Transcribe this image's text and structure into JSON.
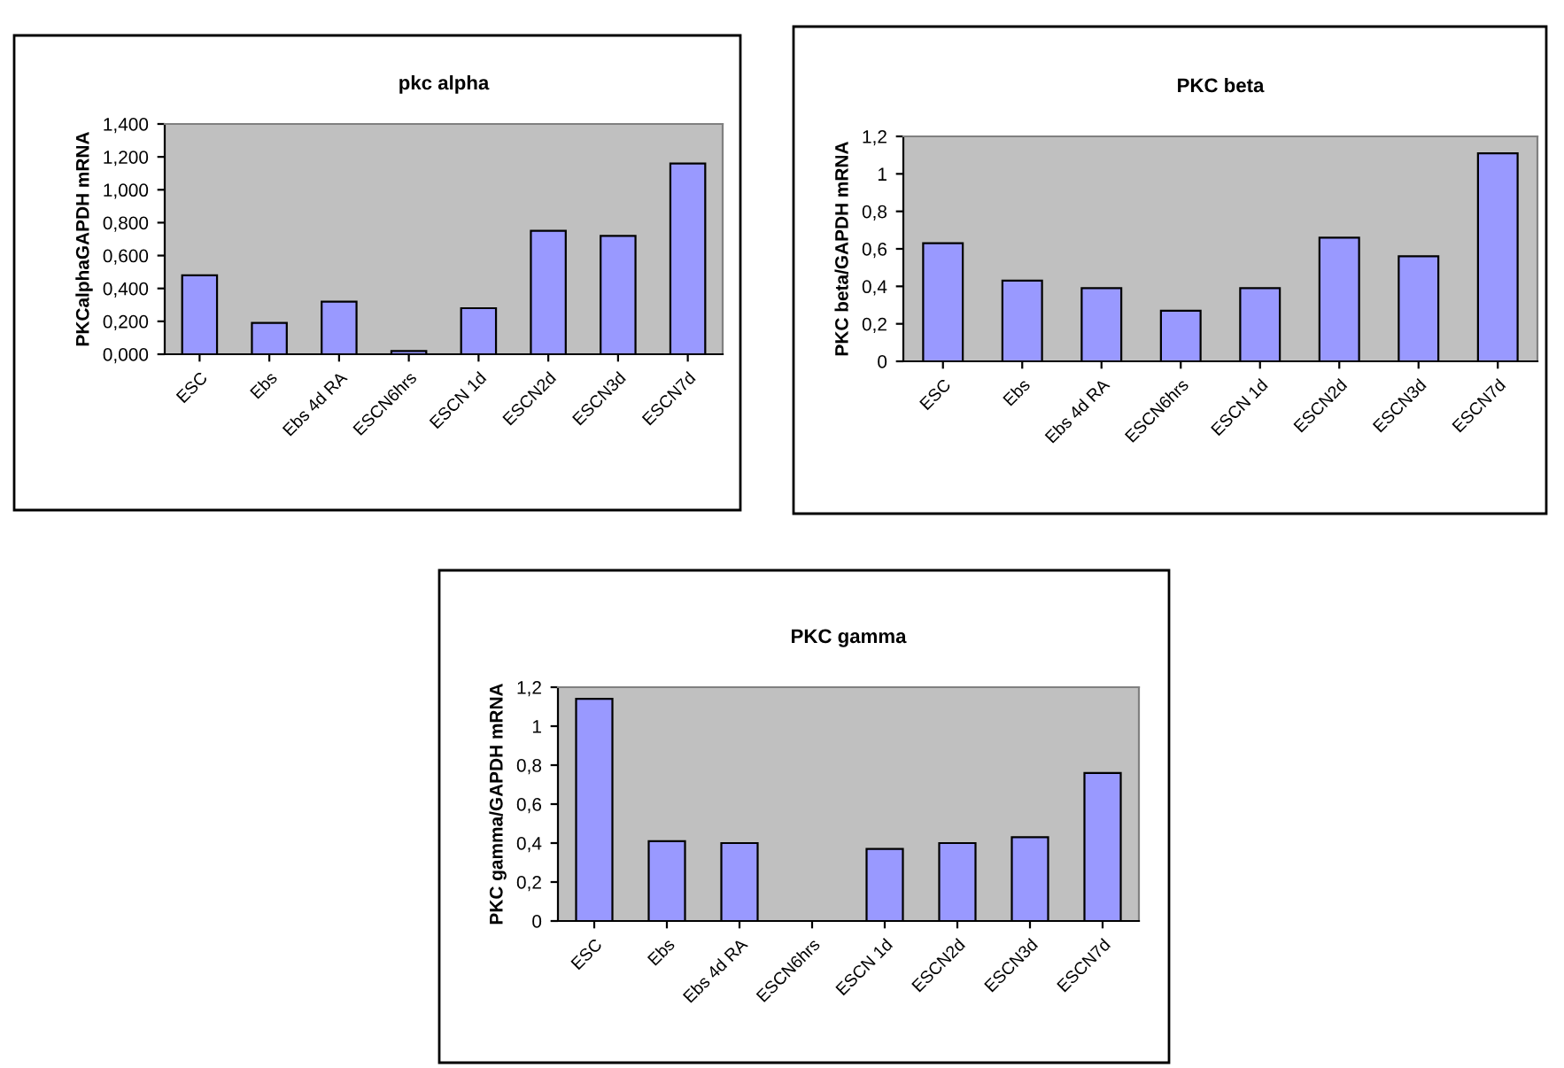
{
  "chart_data": [
    {
      "type": "bar",
      "title": "pkc alpha",
      "ylabel": "PKCalphaGAPDH mRNA",
      "categories": [
        "ESC",
        "Ebs",
        "Ebs 4d RA",
        "ESCN6hrs",
        "ESCN 1d",
        "ESCN2d",
        "ESCN3d",
        "ESCN7d"
      ],
      "values": [
        0.48,
        0.19,
        0.32,
        0.02,
        0.28,
        0.75,
        0.72,
        1.16
      ],
      "color": "#9999ff",
      "ylim": [
        0,
        1.4
      ],
      "yticks": [
        {
          "value": 0,
          "label": "0,000"
        },
        {
          "value": 0.2,
          "label": "0,200"
        },
        {
          "value": 0.4,
          "label": "0,400"
        },
        {
          "value": 0.6,
          "label": "0,600"
        },
        {
          "value": 0.8,
          "label": "0,800"
        },
        {
          "value": 1.0,
          "label": "1,000"
        },
        {
          "value": 1.2,
          "label": "1,200"
        },
        {
          "value": 1.4,
          "label": "1,400"
        }
      ],
      "grid": false,
      "legend": false
    },
    {
      "type": "bar",
      "title": "PKC beta",
      "ylabel": "PKC beta/GAPDH mRNA",
      "categories": [
        "ESC",
        "Ebs",
        "Ebs 4d RA",
        "ESCN6hrs",
        "ESCN 1d",
        "ESCN2d",
        "ESCN3d",
        "ESCN7d"
      ],
      "values": [
        0.63,
        0.43,
        0.39,
        0.27,
        0.39,
        0.66,
        0.56,
        1.11
      ],
      "color": "#9999ff",
      "ylim": [
        0,
        1.2
      ],
      "yticks": [
        0,
        {
          "value": 0.2,
          "label": "0,2"
        },
        {
          "value": 0.4,
          "label": "0,4"
        },
        {
          "value": 0.6,
          "label": "0,6"
        },
        {
          "value": 0.8,
          "label": "0,8"
        },
        1,
        {
          "value": 1.2,
          "label": "1,2"
        }
      ],
      "grid": false,
      "legend": false
    },
    {
      "type": "bar",
      "title": "PKC gamma",
      "ylabel": "PKC gamma/GAPDH mRNA",
      "categories": [
        "ESC",
        "Ebs",
        "Ebs 4d RA",
        "ESCN6hrs",
        "ESCN 1d",
        "ESCN2d",
        "ESCN3d",
        "ESCN7d"
      ],
      "values": [
        1.14,
        0.41,
        0.4,
        null,
        0.37,
        0.4,
        0.43,
        0.76
      ],
      "color": "#9999ff",
      "ylim": [
        0,
        1.2
      ],
      "yticks": [
        0,
        {
          "value": 0.2,
          "label": "0,2"
        },
        {
          "value": 0.4,
          "label": "0,4"
        },
        {
          "value": 0.6,
          "label": "0,6"
        },
        {
          "value": 0.8,
          "label": "0,8"
        },
        1,
        {
          "value": 1.2,
          "label": "1,2"
        }
      ],
      "grid": false,
      "legend": false
    }
  ]
}
